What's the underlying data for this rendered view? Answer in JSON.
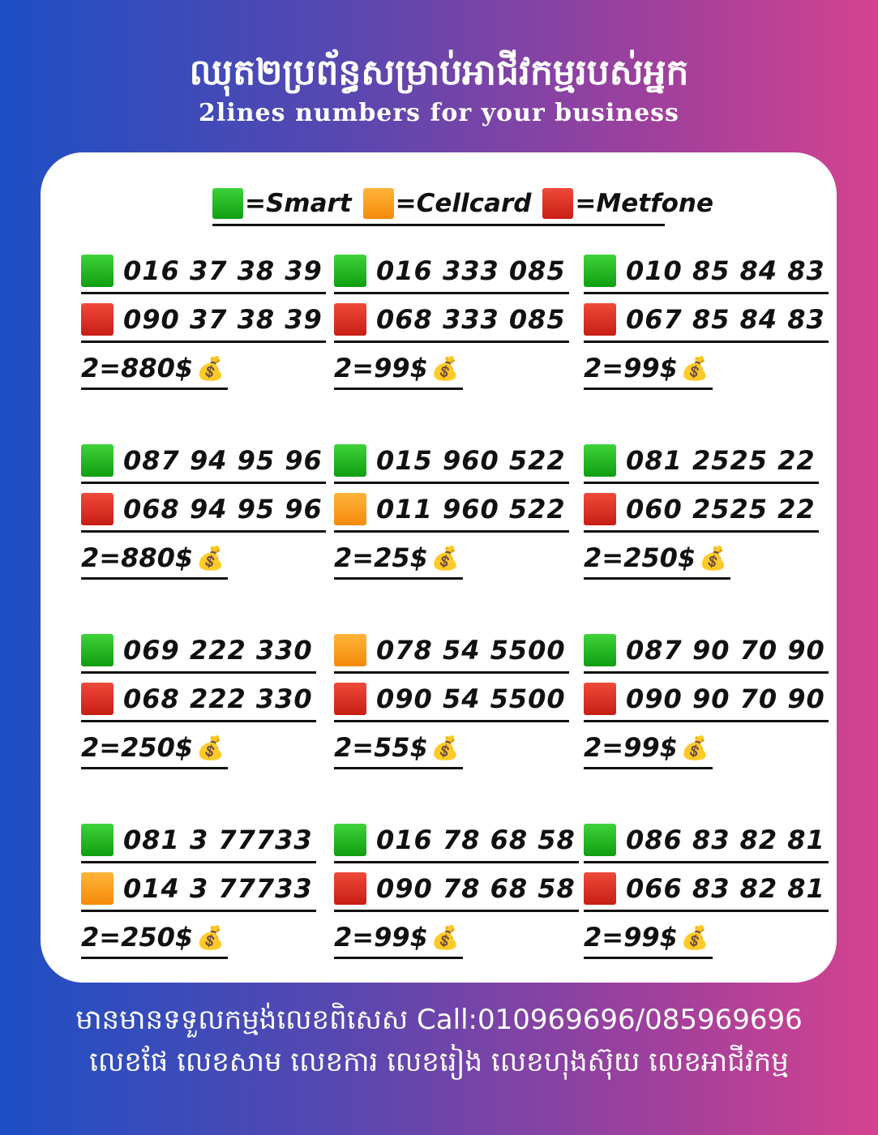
{
  "header": {
    "title": "ឈុត២ប្រព័ន្ធសម្រាប់អាជីវកម្មរបស់អ្នក",
    "subtitle": "2lines numbers for your business"
  },
  "legend": [
    {
      "color": "#1bb51a",
      "label": "=Smart"
    },
    {
      "color": "#f99a1c",
      "label": "=Cellcard"
    },
    {
      "color": "#dc2a1f",
      "label": "=Metfone"
    }
  ],
  "bag_icon": "money-bag-icon",
  "groups": [
    {
      "lines": [
        {
          "op": "green",
          "number": "016 37 38 39"
        },
        {
          "op": "red",
          "number": "090 37 38 39"
        }
      ],
      "price": "2=880$"
    },
    {
      "lines": [
        {
          "op": "green",
          "number": "016 333 085"
        },
        {
          "op": "red",
          "number": "068 333 085"
        }
      ],
      "price": "2=99$"
    },
    {
      "lines": [
        {
          "op": "green",
          "number": "010 85 84 83"
        },
        {
          "op": "red",
          "number": "067 85 84 83"
        }
      ],
      "price": "2=99$"
    },
    {
      "lines": [
        {
          "op": "green",
          "number": "087 94 95 96"
        },
        {
          "op": "red",
          "number": "068 94 95 96"
        }
      ],
      "price": "2=880$"
    },
    {
      "lines": [
        {
          "op": "green",
          "number": "015 960 522"
        },
        {
          "op": "orange",
          "number": "011 960 522"
        }
      ],
      "price": "2=25$"
    },
    {
      "lines": [
        {
          "op": "green",
          "number": "081 2525 22"
        },
        {
          "op": "red",
          "number": "060 2525 22"
        }
      ],
      "price": "2=250$"
    },
    {
      "lines": [
        {
          "op": "green",
          "number": "069 222 330"
        },
        {
          "op": "red",
          "number": "068 222 330"
        }
      ],
      "price": "2=250$"
    },
    {
      "lines": [
        {
          "op": "orange",
          "number": "078 54 5500"
        },
        {
          "op": "red",
          "number": "090 54 5500"
        }
      ],
      "price": "2=55$"
    },
    {
      "lines": [
        {
          "op": "green",
          "number": "087 90 70 90"
        },
        {
          "op": "red",
          "number": "090 90 70 90"
        }
      ],
      "price": "2=99$"
    },
    {
      "lines": [
        {
          "op": "green",
          "number": "081 3 77733"
        },
        {
          "op": "orange",
          "number": "014 3 77733"
        }
      ],
      "price": "2=250$"
    },
    {
      "lines": [
        {
          "op": "green",
          "number": "016 78 68 58"
        },
        {
          "op": "red",
          "number": "090 78 68 58"
        }
      ],
      "price": "2=99$"
    },
    {
      "lines": [
        {
          "op": "green",
          "number": "086 83 82 81"
        },
        {
          "op": "red",
          "number": "066 83 82 81"
        }
      ],
      "price": "2=99$"
    }
  ],
  "footer": {
    "line1": "មានមានទទួលកម្មង់លេខពិសេស Call:010969696/085969696",
    "line2": "លេខផែ លេខសាម លេខការ លេខរៀង លេខហុងស៊ុយ លេខអាជីវកម្ម"
  }
}
